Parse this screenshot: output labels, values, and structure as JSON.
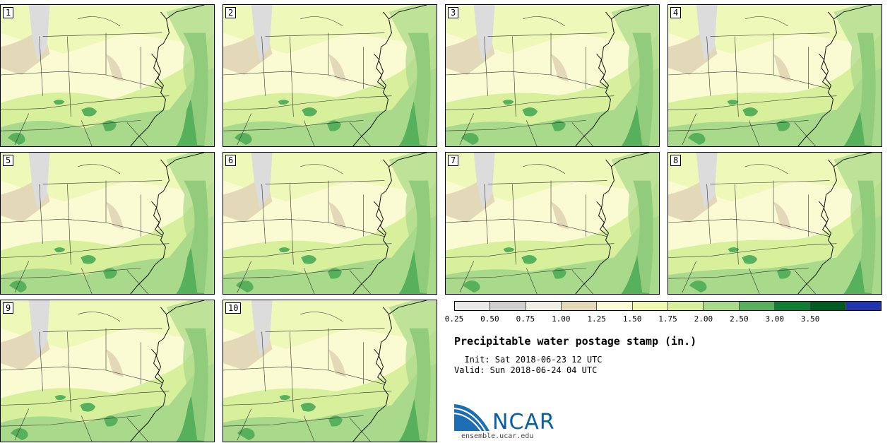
{
  "stamps": [
    "1",
    "2",
    "3",
    "4",
    "5",
    "6",
    "7",
    "8",
    "9",
    "10"
  ],
  "colorbar": {
    "colors": [
      "#e8e8e8",
      "#d0d0d0",
      "#efefe6",
      "#e3d9b8",
      "#fcfcd6",
      "#f0f9b2",
      "#d8ef9c",
      "#a9d98a",
      "#57b05c",
      "#0f7d33",
      "#005c23",
      "#1f34ad"
    ],
    "labels": [
      "0.25",
      "0.50",
      "0.75",
      "1.00",
      "1.25",
      "1.50",
      "1.75",
      "2.00",
      "2.50",
      "3.00",
      "3.50"
    ]
  },
  "title": "Precipitable water postage stamp (in.)",
  "init": "  Init: Sat 2018-06-23 12 UTC",
  "valid": "Valid: Sun 2018-06-24 04 UTC",
  "logo": {
    "name": "NCAR",
    "url": "ensemble.ucar.edu"
  }
}
